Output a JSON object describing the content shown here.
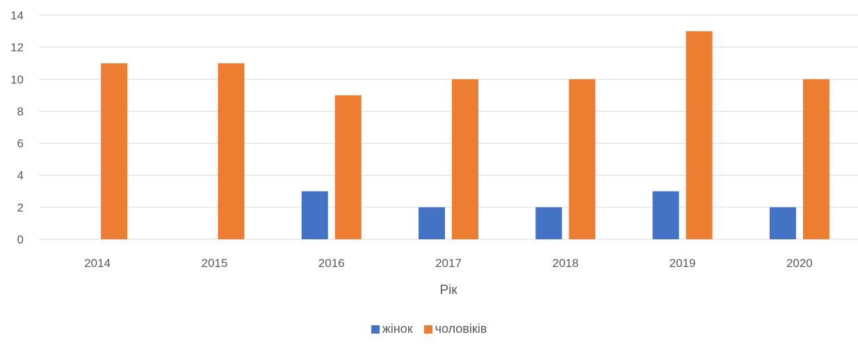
{
  "chart_data": {
    "type": "bar",
    "categories": [
      "2014",
      "2015",
      "2016",
      "2017",
      "2018",
      "2019",
      "2020"
    ],
    "series": [
      {
        "name": "жінок",
        "values": [
          0,
          0,
          3,
          2,
          2,
          3,
          2
        ],
        "color": "#4472C4"
      },
      {
        "name": "чоловіків",
        "values": [
          11,
          11,
          9,
          10,
          10,
          13,
          10
        ],
        "color": "#ED7D31"
      }
    ],
    "title": "",
    "xlabel": "Рік",
    "ylabel": "",
    "ylim": [
      0,
      14
    ],
    "yticks": [
      0,
      2,
      4,
      6,
      8,
      10,
      12,
      14
    ],
    "grid": true,
    "legend_position": "bottom"
  }
}
